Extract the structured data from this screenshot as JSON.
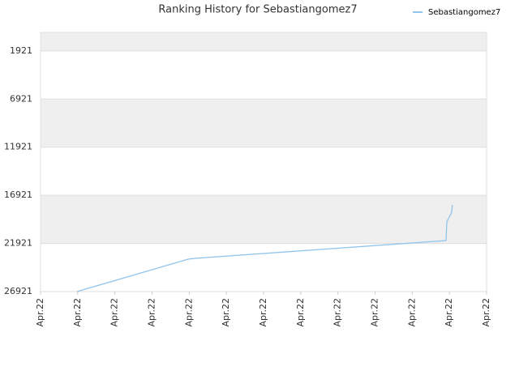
{
  "chart_data": {
    "type": "line",
    "title": "Ranking History for Sebastiangomez7",
    "x": [
      0.98,
      3.97,
      4.15,
      10.91,
      10.93,
      11.02,
      11.06,
      11.08
    ],
    "series": [
      {
        "name": "Sebastiangomez7",
        "color": "#8fc4ec",
        "values": [
          26921,
          23556,
          23472,
          21621,
          19686,
          19013,
          18677,
          17920
        ]
      }
    ],
    "xlim": [
      0,
      12
    ],
    "xticks": [
      {
        "value": 0,
        "label": "Apr.22"
      },
      {
        "value": 1,
        "label": "Apr.22"
      },
      {
        "value": 2,
        "label": "Apr.22"
      },
      {
        "value": 3,
        "label": "Apr.22"
      },
      {
        "value": 4,
        "label": "Apr.22"
      },
      {
        "value": 5,
        "label": "Apr.22"
      },
      {
        "value": 6,
        "label": "Apr.22"
      },
      {
        "value": 7,
        "label": "Apr.22"
      },
      {
        "value": 8,
        "label": "Apr.22"
      },
      {
        "value": 9,
        "label": "Apr.22"
      },
      {
        "value": 10,
        "label": "Apr.22"
      },
      {
        "value": 11,
        "label": "Apr.22"
      },
      {
        "value": 12,
        "label": "Apr.22"
      }
    ],
    "ylim": [
      26921,
      0
    ],
    "yticks": [
      1921,
      6921,
      11921,
      16921,
      21921,
      26921
    ],
    "inverted_y": true,
    "grid": true,
    "legend": "top-right"
  }
}
